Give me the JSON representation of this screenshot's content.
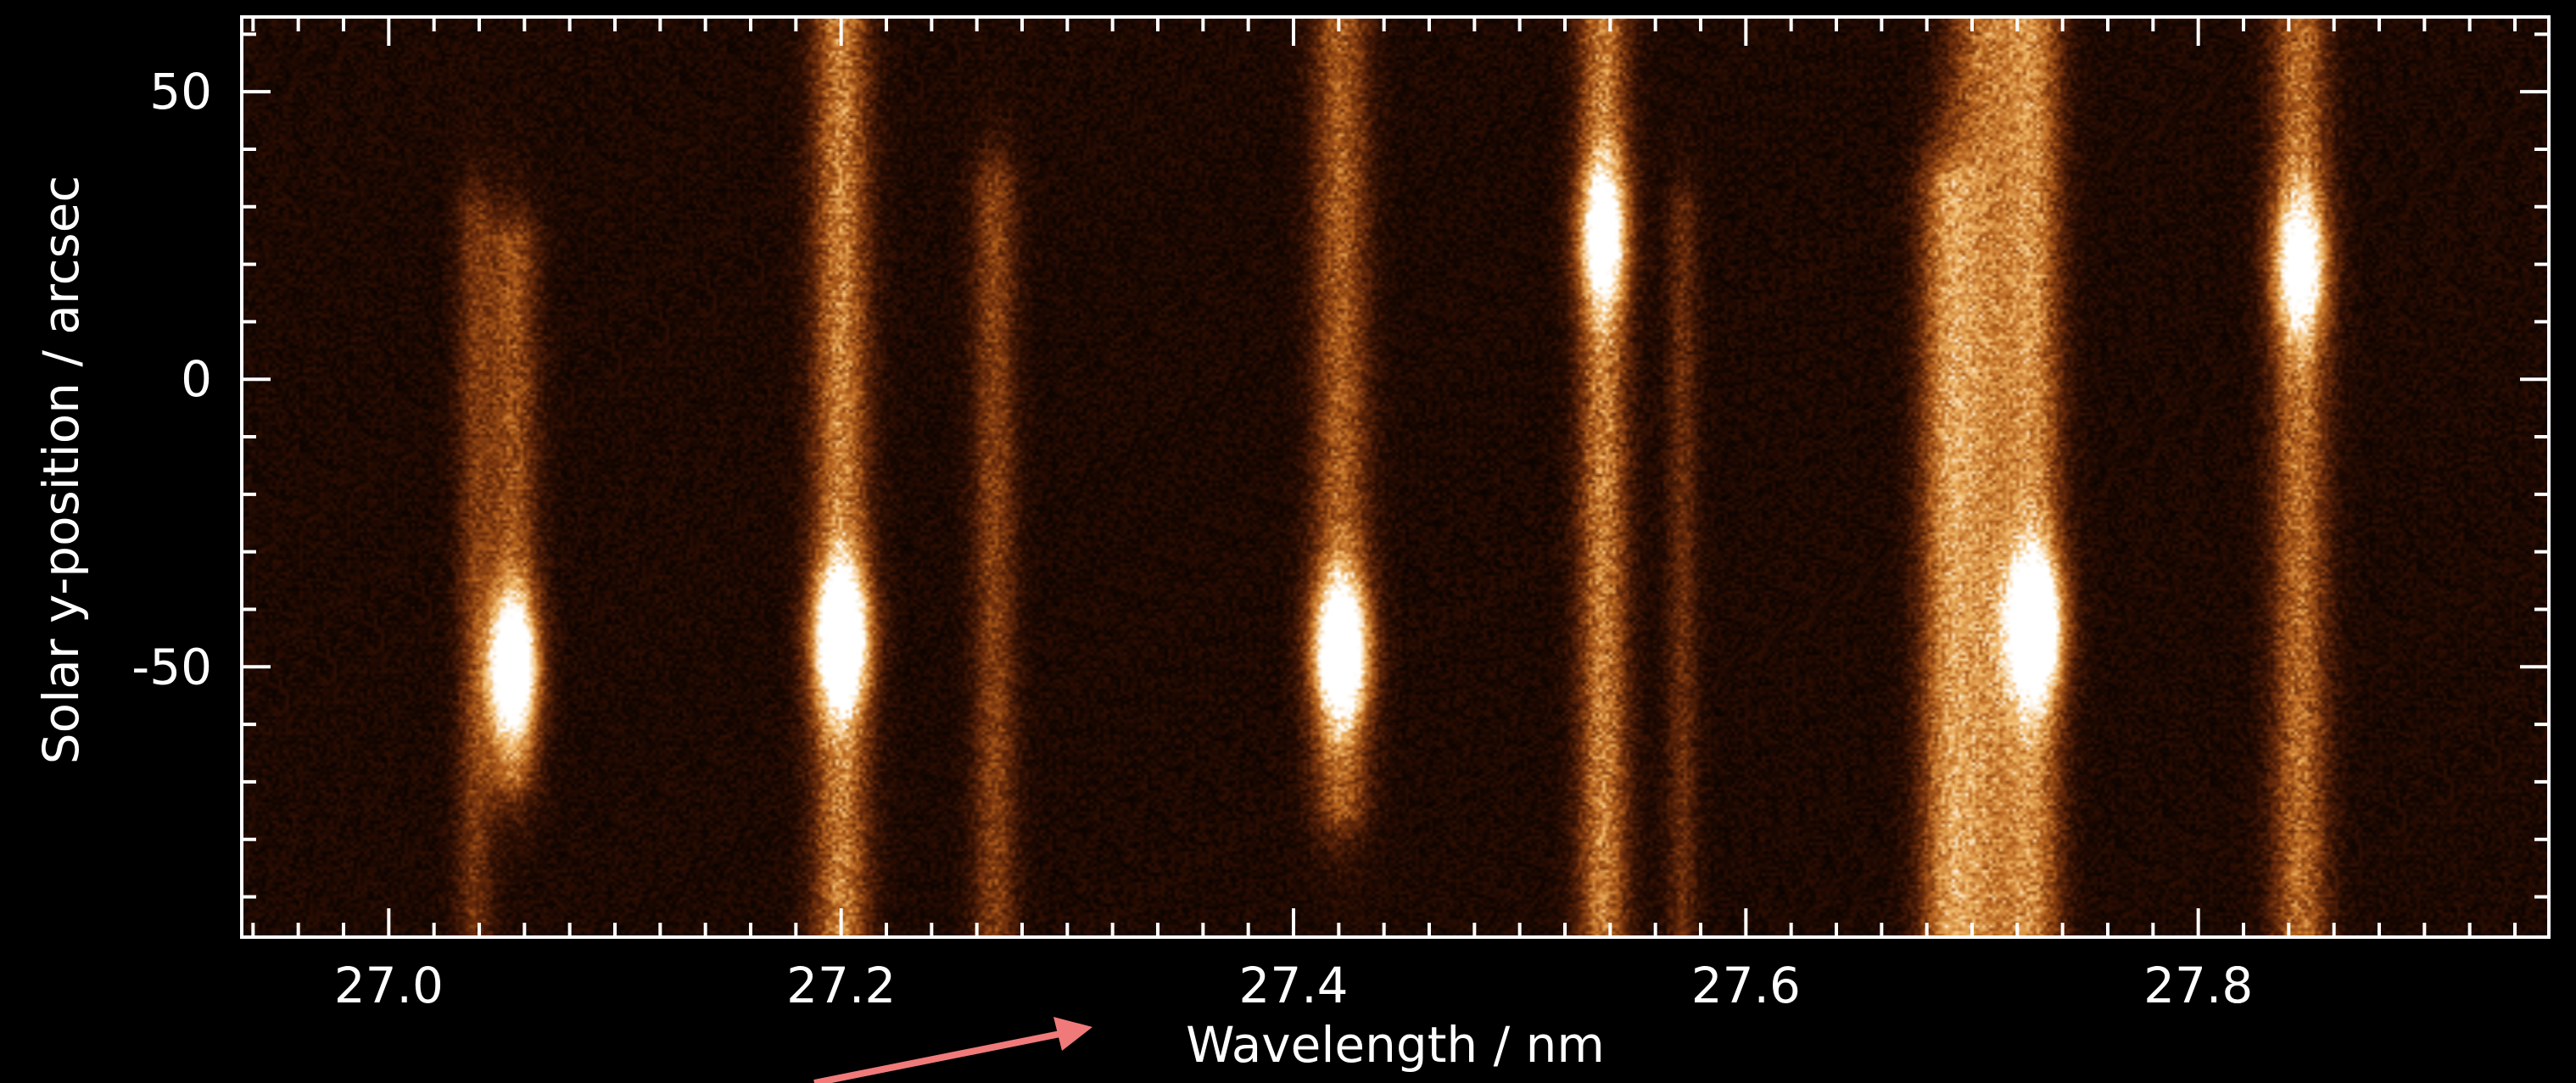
{
  "chart_data": {
    "type": "heatmap",
    "title": "",
    "xlabel": "Wavelength / nm",
    "ylabel": "Solar y-position / arcsec",
    "xlim": [
      26.935,
      27.955
    ],
    "ylim": [
      -97,
      63
    ],
    "xticks": [
      27.0,
      27.2,
      27.4,
      27.6,
      27.8
    ],
    "xtick_labels": [
      "27.0",
      "27.2",
      "27.4",
      "27.6",
      "27.8"
    ],
    "yticks": [
      50,
      0,
      -50
    ],
    "ytick_labels": [
      "50",
      "0",
      "-50"
    ],
    "grid": false,
    "colormap": [
      "#000000",
      "#2a0d03",
      "#6b2c0b",
      "#b8641e",
      "#f0b766",
      "#ffffff"
    ],
    "background": "#000000",
    "spectral_lines": [
      {
        "wavelength": 27.038,
        "width": 0.006,
        "intensity": 0.28,
        "y_range": [
          -97,
          30
        ]
      },
      {
        "wavelength": 27.055,
        "width": 0.008,
        "intensity": 0.4,
        "y_range": [
          -70,
          25
        ],
        "core_y": -50,
        "core_intensity": 1.0
      },
      {
        "wavelength": 27.2,
        "width": 0.009,
        "intensity": 0.55,
        "y_range": [
          -97,
          63
        ],
        "core_y": -45,
        "core_intensity": 1.0
      },
      {
        "wavelength": 27.268,
        "width": 0.007,
        "intensity": 0.35,
        "y_range": [
          -97,
          35
        ]
      },
      {
        "wavelength": 27.421,
        "width": 0.009,
        "intensity": 0.45,
        "y_range": [
          -75,
          63
        ],
        "core_y": -47,
        "core_intensity": 1.0
      },
      {
        "wavelength": 27.537,
        "width": 0.008,
        "intensity": 0.55,
        "y_range": [
          -97,
          63
        ],
        "core_y": 25,
        "core_intensity": 0.7
      },
      {
        "wavelength": 27.572,
        "width": 0.005,
        "intensity": 0.25,
        "y_range": [
          -97,
          30
        ]
      },
      {
        "wavelength": 27.688,
        "width": 0.009,
        "intensity": 0.45,
        "y_range": [
          -97,
          35
        ]
      },
      {
        "wavelength": 27.706,
        "width": 0.012,
        "intensity": 0.5,
        "y_range": [
          -97,
          63
        ]
      },
      {
        "wavelength": 27.728,
        "width": 0.009,
        "intensity": 0.5,
        "y_range": [
          -97,
          63
        ],
        "core_y": -43,
        "core_intensity": 0.95
      },
      {
        "wavelength": 27.845,
        "width": 0.009,
        "intensity": 0.5,
        "y_range": [
          -97,
          63
        ],
        "core_y": 20,
        "core_intensity": 0.7
      }
    ],
    "annotations": [
      {
        "type": "arrow",
        "color": "#f07a7a",
        "points_to": "Wavelength / nm"
      }
    ]
  }
}
